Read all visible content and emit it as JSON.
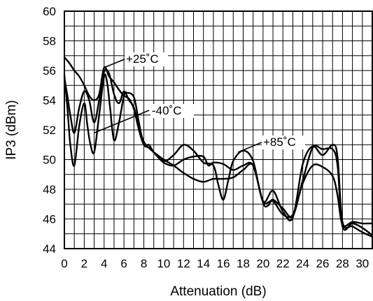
{
  "chart_data": {
    "type": "line",
    "xlabel": "Attenuation (dB)",
    "ylabel": "IP3 (dBm)",
    "xlim": [
      0,
      31
    ],
    "ylim": [
      44,
      60
    ],
    "xticks": [
      0,
      2,
      4,
      6,
      8,
      10,
      12,
      14,
      16,
      18,
      20,
      22,
      24,
      26,
      28,
      30
    ],
    "yticks": [
      44,
      46,
      48,
      50,
      52,
      54,
      56,
      58,
      60
    ],
    "grid": true,
    "legend": "none",
    "line_color": "#000000",
    "series": [
      {
        "name": "+25°C",
        "x": [
          0,
          0.5,
          1,
          1.5,
          2,
          2.5,
          3,
          3.5,
          4,
          4.5,
          5,
          5.5,
          6,
          6.5,
          7,
          7.5,
          8,
          8.5,
          9,
          10,
          11,
          12,
          13,
          14,
          15,
          16,
          17,
          18,
          19,
          20,
          21,
          22,
          23,
          24,
          25,
          26,
          27,
          27.5,
          28,
          29,
          30,
          31
        ],
        "y": [
          56.9,
          56.5,
          56.0,
          55.6,
          55.0,
          54.3,
          54.0,
          54.4,
          56.2,
          55.6,
          55.2,
          54.7,
          54.3,
          54.1,
          53.4,
          52.0,
          51.0,
          50.8,
          50.5,
          50.0,
          49.6,
          49.1,
          48.7,
          48.5,
          48.7,
          48.7,
          48.8,
          49.3,
          49.6,
          47.2,
          47.2,
          46.3,
          46.3,
          48.4,
          49.6,
          49.5,
          48.9,
          47.6,
          45.6,
          45.8,
          45.7,
          45.7
        ]
      },
      {
        "name": "-40°C",
        "x": [
          0,
          0.3,
          0.6,
          1,
          1.5,
          2,
          2.3,
          2.6,
          3,
          3.5,
          4,
          4.3,
          4.6,
          5,
          5.5,
          6,
          6.3,
          7,
          7.5,
          8,
          8.5,
          9,
          10,
          11,
          12,
          13,
          14,
          14.5,
          15,
          16,
          17,
          18,
          19,
          20,
          20.5,
          21,
          22,
          23,
          24,
          25,
          26,
          27,
          27.5,
          28,
          29,
          30,
          31
        ],
        "y": [
          55.7,
          53.5,
          51.0,
          49.6,
          52.3,
          53.8,
          52.4,
          51.1,
          50.5,
          53.0,
          55.6,
          55.2,
          53.5,
          51.3,
          52.5,
          54.3,
          54.5,
          54.2,
          52.5,
          51.0,
          51.0,
          50.5,
          49.8,
          49.6,
          50.0,
          50.2,
          50.2,
          49.6,
          49.8,
          49.7,
          49.3,
          49.6,
          49.6,
          47.1,
          46.9,
          47.3,
          46.7,
          46.2,
          48.6,
          50.8,
          50.7,
          50.7,
          49.6,
          45.5,
          45.7,
          45.4,
          44.9
        ]
      },
      {
        "name": "+85°C",
        "x": [
          0,
          0.3,
          0.6,
          1,
          1.5,
          2,
          2.5,
          3,
          3.5,
          4,
          4.5,
          5,
          5.5,
          6,
          6.5,
          7,
          7.5,
          8,
          8.5,
          9,
          10,
          11,
          12,
          13,
          14,
          15,
          15.5,
          16,
          16.5,
          17,
          18,
          19,
          20,
          21,
          22,
          23,
          24,
          25,
          26,
          27,
          27.5,
          28,
          29,
          30,
          31
        ],
        "y": [
          55.5,
          54.3,
          53.0,
          51.8,
          53.5,
          54.6,
          54.0,
          52.5,
          54.0,
          55.9,
          55.8,
          54.4,
          53.8,
          54.6,
          54.0,
          53.5,
          52.2,
          51.2,
          50.8,
          50.5,
          49.9,
          50.3,
          51.0,
          50.6,
          49.8,
          49.6,
          48.3,
          47.3,
          48.6,
          49.9,
          50.6,
          49.9,
          47.2,
          47.9,
          46.5,
          46.1,
          49.7,
          50.9,
          50.3,
          51.0,
          50.2,
          45.8,
          45.5,
          45.1,
          44.8
        ]
      }
    ],
    "annotations": [
      {
        "text": "+25˚C",
        "series": 0,
        "x": 4.0,
        "y": 56.2
      },
      {
        "text": "-40˚C",
        "series": 1,
        "x": 3.0,
        "y": 51.8
      },
      {
        "text": "+85˚C",
        "series": 2,
        "x": 17.5,
        "y": 50.5
      }
    ]
  }
}
